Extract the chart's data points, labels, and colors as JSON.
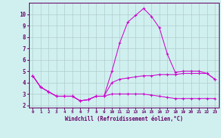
{
  "x": [
    0,
    1,
    2,
    3,
    4,
    5,
    6,
    7,
    8,
    9,
    10,
    11,
    12,
    13,
    14,
    15,
    16,
    17,
    18,
    19,
    20,
    21,
    22,
    23
  ],
  "line1": [
    4.6,
    3.6,
    3.2,
    2.8,
    2.8,
    2.8,
    2.4,
    2.5,
    2.8,
    2.8,
    5.0,
    7.5,
    9.3,
    9.9,
    10.5,
    9.8,
    8.8,
    6.5,
    4.9,
    5.0,
    5.0,
    5.0,
    4.8,
    4.3
  ],
  "line2": [
    4.6,
    3.6,
    3.2,
    2.8,
    2.8,
    2.8,
    2.4,
    2.5,
    2.8,
    2.8,
    4.0,
    4.3,
    4.4,
    4.5,
    4.6,
    4.6,
    4.7,
    4.7,
    4.7,
    4.8,
    4.8,
    4.8,
    4.8,
    4.3
  ],
  "line3": [
    4.6,
    3.6,
    3.2,
    2.8,
    2.8,
    2.8,
    2.4,
    2.5,
    2.8,
    2.8,
    3.0,
    3.0,
    3.0,
    3.0,
    3.0,
    2.9,
    2.8,
    2.7,
    2.6,
    2.6,
    2.6,
    2.6,
    2.6,
    2.6
  ],
  "line_color": "#cc00cc",
  "bg_color": "#d0f0f0",
  "grid_color": "#b0c8c8",
  "axis_color": "#660066",
  "xlabel": "Windchill (Refroidissement éolien,°C)",
  "ylim": [
    1.8,
    11.0
  ],
  "xlim": [
    -0.5,
    23.5
  ],
  "yticks": [
    2,
    3,
    4,
    5,
    6,
    7,
    8,
    9,
    10
  ],
  "xticks": [
    0,
    1,
    2,
    3,
    4,
    5,
    6,
    7,
    8,
    9,
    10,
    11,
    12,
    13,
    14,
    15,
    16,
    17,
    18,
    19,
    20,
    21,
    22,
    23
  ]
}
